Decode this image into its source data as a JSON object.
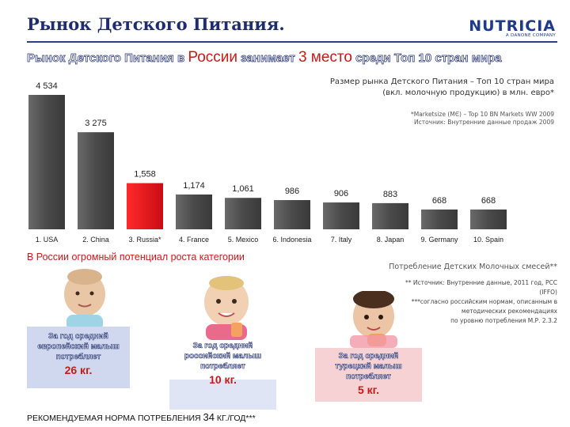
{
  "slide": {
    "title": "Рынок Детского Питания.",
    "logo": {
      "word": "NUTRICIA",
      "sub": "A DANONE COMPANY"
    },
    "headline": {
      "part1": "Рынок Детского Питания в ",
      "part2": "России",
      "part3": " занимает ",
      "part4": "3 место",
      "part5": " среди Топ 10 стран мира"
    },
    "note_title_1": "Размер рынка Детского Питания – Топ 10 стран мира",
    "note_title_2": "(вкл. молочную продукцию) в млн. евро*",
    "note_src_1": "*Marketsize (MЄ) – Top 10 BN Markets WW 2009",
    "note_src_2": "Источник: Внутренние данные продаж 2009",
    "potential": "В России огромный потенциал роста категории",
    "consumption_label": "Потребление Детских Молочных смесей**",
    "foot_src": [
      "** Источник: Внутренние данные, 2011 год, PCC",
      "(IFFO)",
      "***согласно российским нормам, описанным в",
      "методических рекомендациях",
      "по уровню потребления М.Р. 2.3.2"
    ],
    "boxes": [
      {
        "lines": [
          "За год средний",
          "европейский малыш",
          "потребляет"
        ],
        "value": "26 кг."
      },
      {
        "lines": [
          "За год средний",
          "российский малыш",
          "потребляет"
        ],
        "value": "10 кг."
      },
      {
        "lines": [
          "За год средний",
          "турецкий малыш",
          "потребляет"
        ],
        "value": "5 кг."
      }
    ],
    "norm": {
      "prefix": "РЕКОМЕНДУЕМАЯ НОРМА ПОТРЕБЛЕНИЯ ",
      "value": "34",
      "suffix": " КГ./ГОД***"
    }
  },
  "colors": {
    "highlight": "#e0131b",
    "bar": "#4a4a4a",
    "accent_red": "#c41a1a"
  },
  "chart_data": {
    "type": "bar",
    "categories": [
      "1. USA",
      "2. China",
      "3. Russia*",
      "4. France",
      "5. Mexico",
      "6. Indonesia",
      "7. Italy",
      "8. Japan",
      "9. Germany",
      "10. Spain"
    ],
    "values": [
      4534,
      3275,
      1558,
      1174,
      1061,
      986,
      906,
      883,
      668,
      668
    ],
    "value_labels": [
      "4 534",
      "3 275",
      "1,558",
      "1,174",
      "1,061",
      "986",
      "906",
      "883",
      "668",
      "668"
    ],
    "highlight_index": 2
  }
}
